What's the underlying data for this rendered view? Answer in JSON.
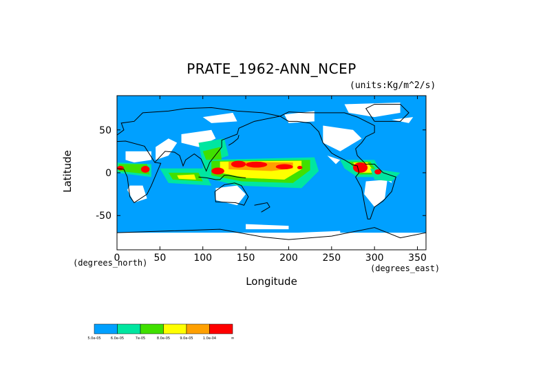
{
  "chart_data": {
    "type": "heatmap",
    "title": "PRATE_1962-ANN_NCEP",
    "units_label": "(units:Kg/m^2/s)",
    "xlabel": "Longitude",
    "ylabel": "Latitude",
    "x_units_label": "(degrees_east)",
    "y_units_label": "(degrees_north)",
    "xlim": [
      0,
      360
    ],
    "ylim": [
      -90,
      90
    ],
    "x_ticks": [
      0,
      50,
      100,
      150,
      200,
      250,
      300,
      350
    ],
    "y_ticks": [
      50,
      0,
      -50
    ],
    "colorbar": {
      "colors": [
        "#00a0ff",
        "#00e6a0",
        "#40e000",
        "#ffff00",
        "#ffa000",
        "#ff0000"
      ],
      "labels": [
        "5.0e-05",
        "6.0e-05",
        "7e-05",
        "8.0e-05",
        "9.0e-05",
        "1.0e-04"
      ],
      "end_label": "∞"
    },
    "regions": [
      {
        "level": 5,
        "lon": [
          133,
          150
        ],
        "lat": [
          6,
          14
        ]
      },
      {
        "level": 5,
        "lon": [
          150,
          175
        ],
        "lat": [
          6,
          13
        ]
      },
      {
        "level": 5,
        "lon": [
          185,
          205
        ],
        "lat": [
          4,
          10
        ]
      },
      {
        "level": 5,
        "lon": [
          110,
          125
        ],
        "lat": [
          -2,
          6
        ]
      },
      {
        "level": 5,
        "lon": [
          275,
          292
        ],
        "lat": [
          0,
          12
        ]
      },
      {
        "level": 5,
        "lon": [
          0,
          8
        ],
        "lat": [
          3,
          8
        ]
      },
      {
        "level": 5,
        "lon": [
          28,
          38
        ],
        "lat": [
          0,
          8
        ]
      },
      {
        "level": 5,
        "lon": [
          300,
          308
        ],
        "lat": [
          -2,
          4
        ]
      },
      {
        "level": 5,
        "lon": [
          210,
          216
        ],
        "lat": [
          4,
          8
        ]
      }
    ]
  }
}
